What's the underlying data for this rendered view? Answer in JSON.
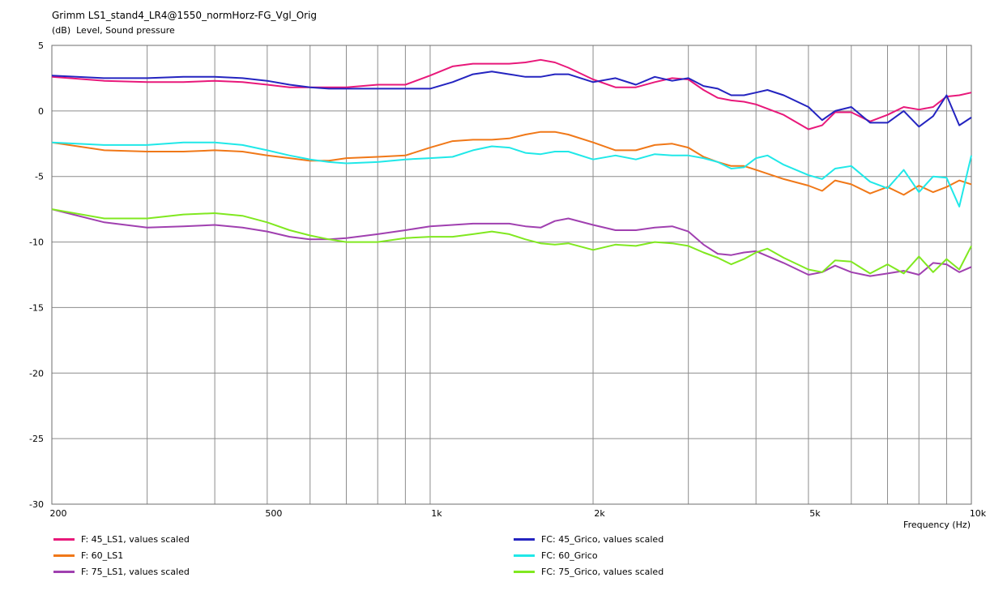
{
  "chart_data": {
    "type": "line",
    "title": "Grimm LS1_stand4_LR4@1550_normHorz-FG_Vgl_Orig",
    "ylabel": "Level, Sound pressure",
    "yunit": "(dB)",
    "xlabel": "Frequency (Hz)",
    "xscale": "log",
    "xlim": [
      200,
      10000
    ],
    "ylim": [
      -30,
      5
    ],
    "yticks": [
      5,
      0,
      -5,
      -10,
      -15,
      -20,
      -25,
      -30
    ],
    "ytick_labels": [
      "5",
      "0",
      "-5",
      "-10",
      "-15",
      "-20",
      "-25",
      "-30"
    ],
    "xticks_labeled": [
      200,
      500,
      1000,
      2000,
      5000,
      10000
    ],
    "xtick_labels": [
      "200",
      "500",
      "1k",
      "2k",
      "5k",
      "10k"
    ],
    "grid": true,
    "legend_position": "bottom",
    "series": [
      {
        "name": "F: 45_LS1, values scaled",
        "color": "#e8187a",
        "x": [
          200,
          250,
          300,
          350,
          400,
          450,
          500,
          550,
          600,
          650,
          700,
          800,
          900,
          1000,
          1100,
          1200,
          1300,
          1400,
          1500,
          1600,
          1700,
          1800,
          2000,
          2200,
          2400,
          2600,
          2800,
          3000,
          3200,
          3400,
          3600,
          3800,
          4000,
          4500,
          5000,
          5300,
          5600,
          6000,
          6500,
          7000,
          7500,
          8000,
          8500,
          9000,
          9500,
          10000
        ],
        "y": [
          2.6,
          2.3,
          2.2,
          2.2,
          2.3,
          2.2,
          2.0,
          1.8,
          1.8,
          1.8,
          1.8,
          2.0,
          2.0,
          2.7,
          3.4,
          3.6,
          3.6,
          3.6,
          3.7,
          3.9,
          3.7,
          3.3,
          2.4,
          1.8,
          1.8,
          2.2,
          2.5,
          2.4,
          1.6,
          1.0,
          0.8,
          0.7,
          0.5,
          -0.3,
          -1.4,
          -1.1,
          -0.1,
          -0.1,
          -0.8,
          -0.3,
          0.3,
          0.1,
          0.3,
          1.1,
          1.2,
          1.4
        ]
      },
      {
        "name": "FC: 45_Grico, values scaled",
        "color": "#2424c0",
        "x": [
          200,
          250,
          300,
          350,
          400,
          450,
          500,
          550,
          600,
          650,
          700,
          800,
          900,
          1000,
          1100,
          1200,
          1300,
          1400,
          1500,
          1600,
          1700,
          1800,
          2000,
          2200,
          2400,
          2600,
          2800,
          3000,
          3200,
          3400,
          3600,
          3800,
          4000,
          4200,
          4500,
          5000,
          5300,
          5600,
          6000,
          6500,
          7000,
          7500,
          8000,
          8500,
          9000,
          9500,
          10000
        ],
        "y": [
          2.7,
          2.5,
          2.5,
          2.6,
          2.6,
          2.5,
          2.3,
          2.0,
          1.8,
          1.7,
          1.7,
          1.7,
          1.7,
          1.7,
          2.2,
          2.8,
          3.0,
          2.8,
          2.6,
          2.6,
          2.8,
          2.8,
          2.2,
          2.5,
          2.0,
          2.6,
          2.3,
          2.5,
          1.9,
          1.7,
          1.2,
          1.2,
          1.4,
          1.6,
          1.2,
          0.3,
          -0.7,
          0.0,
          0.3,
          -0.9,
          -0.9,
          0.0,
          -1.2,
          -0.4,
          1.2,
          -1.1,
          -0.5
        ]
      },
      {
        "name": "F: 60_LS1",
        "color": "#f07818",
        "x": [
          200,
          250,
          300,
          350,
          400,
          450,
          500,
          550,
          600,
          650,
          700,
          800,
          900,
          1000,
          1100,
          1200,
          1300,
          1400,
          1500,
          1600,
          1700,
          1800,
          2000,
          2200,
          2400,
          2600,
          2800,
          3000,
          3200,
          3400,
          3600,
          3800,
          4000,
          4500,
          5000,
          5300,
          5600,
          6000,
          6500,
          7000,
          7500,
          8000,
          8500,
          9000,
          9500,
          10000
        ],
        "y": [
          -2.4,
          -3.0,
          -3.1,
          -3.1,
          -3.0,
          -3.1,
          -3.4,
          -3.6,
          -3.8,
          -3.8,
          -3.6,
          -3.5,
          -3.4,
          -2.8,
          -2.3,
          -2.2,
          -2.2,
          -2.1,
          -1.8,
          -1.6,
          -1.6,
          -1.8,
          -2.4,
          -3.0,
          -3.0,
          -2.6,
          -2.5,
          -2.8,
          -3.5,
          -3.9,
          -4.2,
          -4.2,
          -4.5,
          -5.2,
          -5.7,
          -6.1,
          -5.3,
          -5.6,
          -6.3,
          -5.8,
          -6.4,
          -5.7,
          -6.2,
          -5.8,
          -5.3,
          -5.6
        ]
      },
      {
        "name": "FC: 60_Grico",
        "color": "#20e8e8",
        "x": [
          200,
          250,
          300,
          350,
          400,
          450,
          500,
          550,
          600,
          650,
          700,
          800,
          900,
          1000,
          1100,
          1200,
          1300,
          1400,
          1500,
          1600,
          1700,
          1800,
          2000,
          2200,
          2400,
          2600,
          2800,
          3000,
          3200,
          3400,
          3600,
          3800,
          4000,
          4200,
          4500,
          5000,
          5300,
          5600,
          6000,
          6500,
          7000,
          7500,
          8000,
          8500,
          9000,
          9500,
          10000
        ],
        "y": [
          -2.4,
          -2.6,
          -2.6,
          -2.4,
          -2.4,
          -2.6,
          -3.0,
          -3.4,
          -3.7,
          -3.9,
          -4.0,
          -3.9,
          -3.7,
          -3.6,
          -3.5,
          -3.0,
          -2.7,
          -2.8,
          -3.2,
          -3.3,
          -3.1,
          -3.1,
          -3.7,
          -3.4,
          -3.7,
          -3.3,
          -3.4,
          -3.4,
          -3.6,
          -3.9,
          -4.4,
          -4.3,
          -3.6,
          -3.4,
          -4.1,
          -4.9,
          -5.2,
          -4.4,
          -4.2,
          -5.4,
          -5.9,
          -4.5,
          -6.2,
          -5.0,
          -5.1,
          -7.3,
          -3.4
        ]
      },
      {
        "name": "F: 75_LS1, values scaled",
        "color": "#a040b0",
        "x": [
          200,
          250,
          300,
          350,
          400,
          450,
          500,
          550,
          600,
          650,
          700,
          800,
          900,
          1000,
          1100,
          1200,
          1300,
          1400,
          1500,
          1600,
          1700,
          1800,
          2000,
          2200,
          2400,
          2600,
          2800,
          3000,
          3200,
          3400,
          3600,
          3800,
          4000,
          4500,
          5000,
          5300,
          5600,
          6000,
          6500,
          7000,
          7500,
          8000,
          8500,
          9000,
          9500,
          10000
        ],
        "y": [
          -7.5,
          -8.5,
          -8.9,
          -8.8,
          -8.7,
          -8.9,
          -9.2,
          -9.6,
          -9.8,
          -9.8,
          -9.7,
          -9.4,
          -9.1,
          -8.8,
          -8.7,
          -8.6,
          -8.6,
          -8.6,
          -8.8,
          -8.9,
          -8.4,
          -8.2,
          -8.7,
          -9.1,
          -9.1,
          -8.9,
          -8.8,
          -9.2,
          -10.2,
          -10.9,
          -11.0,
          -10.8,
          -10.7,
          -11.6,
          -12.5,
          -12.3,
          -11.8,
          -12.3,
          -12.6,
          -12.4,
          -12.2,
          -12.5,
          -11.6,
          -11.7,
          -12.3,
          -11.9
        ]
      },
      {
        "name": "FC: 75_Grico, values scaled",
        "color": "#80e820",
        "x": [
          200,
          250,
          300,
          350,
          400,
          450,
          500,
          550,
          600,
          650,
          700,
          800,
          900,
          1000,
          1100,
          1200,
          1300,
          1400,
          1500,
          1600,
          1700,
          1800,
          2000,
          2200,
          2400,
          2600,
          2800,
          3000,
          3200,
          3400,
          3600,
          3800,
          4000,
          4200,
          4500,
          5000,
          5300,
          5600,
          6000,
          6500,
          7000,
          7500,
          8000,
          8500,
          9000,
          9500,
          10000
        ],
        "y": [
          -7.5,
          -8.2,
          -8.2,
          -7.9,
          -7.8,
          -8.0,
          -8.5,
          -9.1,
          -9.5,
          -9.8,
          -10.0,
          -10.0,
          -9.7,
          -9.6,
          -9.6,
          -9.4,
          -9.2,
          -9.4,
          -9.8,
          -10.1,
          -10.2,
          -10.1,
          -10.6,
          -10.2,
          -10.3,
          -10.0,
          -10.1,
          -10.3,
          -10.8,
          -11.2,
          -11.7,
          -11.3,
          -10.8,
          -10.5,
          -11.2,
          -12.1,
          -12.3,
          -11.4,
          -11.5,
          -12.4,
          -11.7,
          -12.4,
          -11.1,
          -12.3,
          -11.3,
          -12.1,
          -10.3
        ]
      }
    ]
  }
}
